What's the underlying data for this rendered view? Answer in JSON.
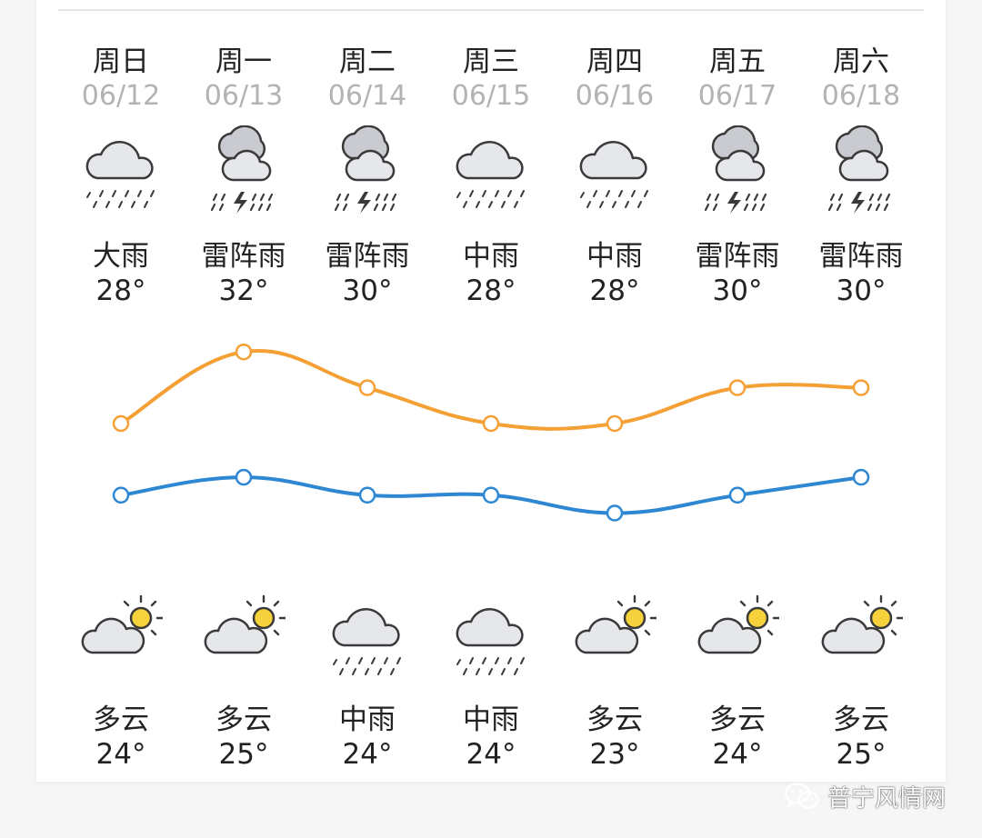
{
  "forecast": {
    "days": [
      {
        "weekday": "周日",
        "date": "06/12",
        "day_cond": "大雨",
        "day_temp": "28°",
        "night_cond": "多云",
        "night_temp": "24°",
        "day_icon": "rain-cloud-icon",
        "night_icon": "partly-cloudy-icon"
      },
      {
        "weekday": "周一",
        "date": "06/13",
        "day_cond": "雷阵雨",
        "day_temp": "32°",
        "night_cond": "多云",
        "night_temp": "25°",
        "day_icon": "thunderstorm-icon",
        "night_icon": "partly-cloudy-icon"
      },
      {
        "weekday": "周二",
        "date": "06/14",
        "day_cond": "雷阵雨",
        "day_temp": "30°",
        "night_cond": "中雨",
        "night_temp": "24°",
        "day_icon": "thunderstorm-icon",
        "night_icon": "rain-cloud-icon"
      },
      {
        "weekday": "周三",
        "date": "06/15",
        "day_cond": "中雨",
        "day_temp": "28°",
        "night_cond": "中雨",
        "night_temp": "24°",
        "day_icon": "rain-cloud-icon",
        "night_icon": "rain-cloud-icon"
      },
      {
        "weekday": "周四",
        "date": "06/16",
        "day_cond": "中雨",
        "day_temp": "28°",
        "night_cond": "多云",
        "night_temp": "23°",
        "day_icon": "rain-cloud-icon",
        "night_icon": "partly-cloudy-icon"
      },
      {
        "weekday": "周五",
        "date": "06/17",
        "day_cond": "雷阵雨",
        "day_temp": "30°",
        "night_cond": "多云",
        "night_temp": "24°",
        "day_icon": "thunderstorm-icon",
        "night_icon": "partly-cloudy-icon"
      },
      {
        "weekday": "周六",
        "date": "06/18",
        "day_cond": "雷阵雨",
        "day_temp": "30°",
        "night_cond": "多云",
        "night_temp": "25°",
        "day_icon": "thunderstorm-icon",
        "night_icon": "partly-cloudy-icon"
      }
    ]
  },
  "chart_data": {
    "type": "line",
    "categories": [
      "06/12",
      "06/13",
      "06/14",
      "06/15",
      "06/16",
      "06/17",
      "06/18"
    ],
    "series": [
      {
        "values": [
          28,
          32,
          30,
          28,
          28,
          30,
          30
        ],
        "color": "#f4a035"
      },
      {
        "values": [
          24,
          25,
          24,
          24,
          23,
          24,
          25
        ],
        "color": "#2d87d3"
      }
    ],
    "grid": false,
    "legend": "none"
  },
  "watermark": {
    "text": "普宁风情网",
    "icon": "wechat-icon"
  },
  "colors": {
    "high": "#f4a035",
    "low": "#2d87d3",
    "cloud_fill": "#e6e7ea",
    "cloud_dark": "#c9cbd0",
    "sun": "#f6d23c"
  }
}
